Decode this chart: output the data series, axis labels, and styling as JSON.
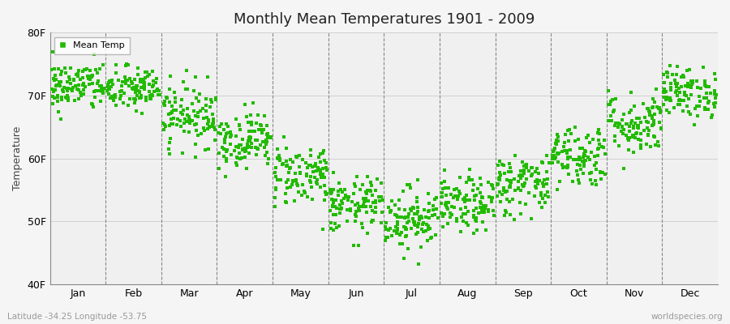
{
  "title": "Monthly Mean Temperatures 1901 - 2009",
  "ylabel": "Temperature",
  "xlabel_bottom": "Latitude -34.25 Longitude -53.75",
  "watermark": "worldspecies.org",
  "yticks": [
    40,
    50,
    60,
    70,
    80
  ],
  "ytick_labels": [
    "40F",
    "50F",
    "60F",
    "70F",
    "80F"
  ],
  "ylim": [
    40,
    80
  ],
  "background_color": "#f5f5f5",
  "plot_bg_color": "#f0f0f0",
  "dot_color": "#22bb00",
  "dot_size": 8,
  "legend_label": "Mean Temp",
  "months": [
    "Jan",
    "Feb",
    "Mar",
    "Apr",
    "May",
    "Jun",
    "Jul",
    "Aug",
    "Sep",
    "Oct",
    "Nov",
    "Dec"
  ],
  "month_means_F": [
    71.5,
    71.0,
    67.0,
    63.0,
    57.5,
    52.5,
    50.5,
    52.5,
    56.0,
    60.5,
    65.5,
    70.5
  ],
  "month_stds_F": [
    2.0,
    1.8,
    2.5,
    2.2,
    2.5,
    2.2,
    2.5,
    2.2,
    2.5,
    2.5,
    2.5,
    2.0
  ],
  "n_years": 109
}
